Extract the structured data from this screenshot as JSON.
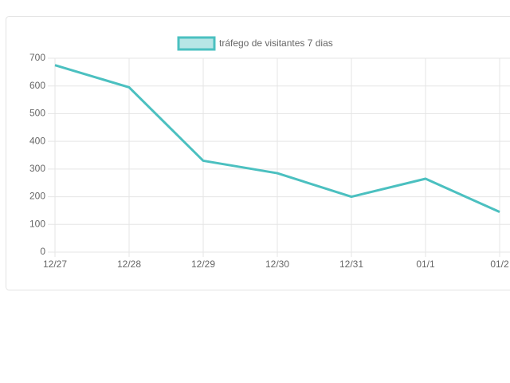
{
  "chart_data": {
    "type": "line",
    "categories": [
      "12/27",
      "12/28",
      "12/29",
      "12/30",
      "12/31",
      "01/1",
      "01/2"
    ],
    "series": [
      {
        "name": "tráfego de visitantes 7 dias",
        "color": "#4bc0c0",
        "values": [
          675,
          595,
          330,
          285,
          200,
          265,
          145
        ]
      }
    ],
    "ylim": [
      0,
      700
    ],
    "yticks": [
      0,
      100,
      200,
      300,
      400,
      500,
      600,
      700
    ],
    "grid": true,
    "legend": "top"
  }
}
